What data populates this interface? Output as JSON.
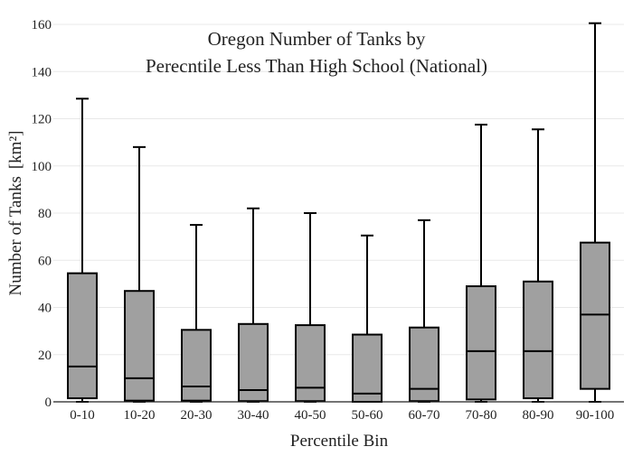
{
  "chart_data": {
    "type": "box",
    "title": [
      "Oregon Number of Tanks by",
      "Perecntile Less Than High School (National)"
    ],
    "xlabel": "Percentile Bin",
    "ylabel": "Number of Tanks",
    "ylabel_unit": "[km²]",
    "ylim": [
      0,
      160
    ],
    "yticks": [
      0,
      20,
      40,
      60,
      80,
      100,
      120,
      140,
      160
    ],
    "grid": true,
    "colors": {
      "box_fill": "#a0a0a0",
      "box_stroke": "#000000",
      "grid": "#e8e8e8"
    },
    "categories": [
      "0-10",
      "10-20",
      "20-30",
      "30-40",
      "40-50",
      "50-60",
      "60-70",
      "70-80",
      "80-90",
      "90-100"
    ],
    "boxes": [
      {
        "min": 0,
        "q1": 1.5,
        "median": 15,
        "q3": 54.5,
        "max": 128.5
      },
      {
        "min": 0,
        "q1": 0.5,
        "median": 10,
        "q3": 47,
        "max": 108
      },
      {
        "min": 0,
        "q1": 0.5,
        "median": 6.5,
        "q3": 30.5,
        "max": 75
      },
      {
        "min": 0,
        "q1": 0.3,
        "median": 5,
        "q3": 33,
        "max": 82
      },
      {
        "min": 0,
        "q1": 0.3,
        "median": 6,
        "q3": 32.5,
        "max": 80
      },
      {
        "min": 0,
        "q1": 0,
        "median": 3.5,
        "q3": 28.5,
        "max": 70.5
      },
      {
        "min": 0,
        "q1": 0.3,
        "median": 5.5,
        "q3": 31.5,
        "max": 77
      },
      {
        "min": 0,
        "q1": 1,
        "median": 21.5,
        "q3": 49,
        "max": 117.5
      },
      {
        "min": 0,
        "q1": 1.5,
        "median": 21.5,
        "q3": 51,
        "max": 115.5
      },
      {
        "min": 0,
        "q1": 5.5,
        "median": 37,
        "q3": 67.5,
        "max": 160.5
      }
    ]
  }
}
